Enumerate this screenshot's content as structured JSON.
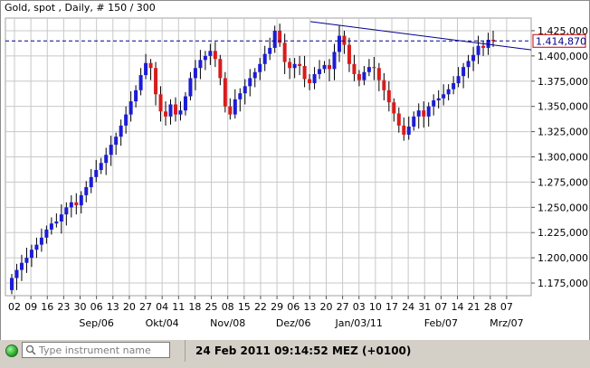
{
  "title": "Gold, spot , Daily, # 150 / 300",
  "status": {
    "search_placeholder": "Type instrument name",
    "datetime": "24 Feb 2011 09:14:52  MEZ (+0100)"
  },
  "colors": {
    "up": "#1c1cd6",
    "down": "#d81c1c",
    "grid": "#c8c8c8",
    "current_line": "#00008b",
    "badge_border": "#cc0000"
  },
  "chart_data": {
    "type": "candlestick",
    "instrument": "Gold, spot",
    "ylim": [
      1162500,
      1437500
    ],
    "yticks": [
      1175000,
      1200000,
      1225000,
      1250000,
      1275000,
      1300000,
      1325000,
      1350000,
      1375000,
      1400000,
      1425000
    ],
    "ytick_labels": [
      "1.175,000",
      "1.200,000",
      "1.225,000",
      "1.250,000",
      "1.275,000",
      "1.300,000",
      "1.325,000",
      "1.350,000",
      "1.375,000",
      "1.400,000",
      "1.425,000"
    ],
    "current_value": 1414870,
    "current_label": "1.414,870",
    "day_labels": [
      "02",
      "09",
      "16",
      "23",
      "30",
      "06",
      "13",
      "20",
      "27",
      "04",
      "11",
      "18",
      "25",
      "08",
      "15",
      "22",
      "29",
      "06",
      "13",
      "20",
      "27",
      "03",
      "10",
      "17",
      "24",
      "31",
      "07",
      "14",
      "21",
      "28",
      "07"
    ],
    "month_labels": [
      "Sep/06",
      "Okt/04",
      "Nov/08",
      "Dez/06",
      "Jan/03/11",
      "Feb/07",
      "Mrz/07"
    ],
    "trendline": {
      "start_value": 1434000,
      "end_value": 1406000
    },
    "closes": [
      1180000,
      1188000,
      1195000,
      1200000,
      1208000,
      1213000,
      1220000,
      1228000,
      1234000,
      1236000,
      1243000,
      1250000,
      1255000,
      1252000,
      1262000,
      1270000,
      1280000,
      1287000,
      1294000,
      1302000,
      1312000,
      1320000,
      1331000,
      1342000,
      1355000,
      1366000,
      1381000,
      1393000,
      1388000,
      1362000,
      1345000,
      1340000,
      1352000,
      1342000,
      1346000,
      1360000,
      1378000,
      1388000,
      1396000,
      1400000,
      1405000,
      1397000,
      1378000,
      1350000,
      1342000,
      1357000,
      1363000,
      1370000,
      1378000,
      1384000,
      1392000,
      1402000,
      1408000,
      1425000,
      1413000,
      1394000,
      1388000,
      1392000,
      1390000,
      1377000,
      1373000,
      1382000,
      1387000,
      1391000,
      1387000,
      1404000,
      1420000,
      1411000,
      1392000,
      1382000,
      1376000,
      1384000,
      1389000,
      1388000,
      1376000,
      1366000,
      1354000,
      1343000,
      1331000,
      1322000,
      1330000,
      1340000,
      1346000,
      1340000,
      1350000,
      1356000,
      1358000,
      1362000,
      1367000,
      1373000,
      1380000,
      1389000,
      1395000,
      1401000,
      1410000,
      1408000,
      1416000,
      1414870
    ]
  }
}
